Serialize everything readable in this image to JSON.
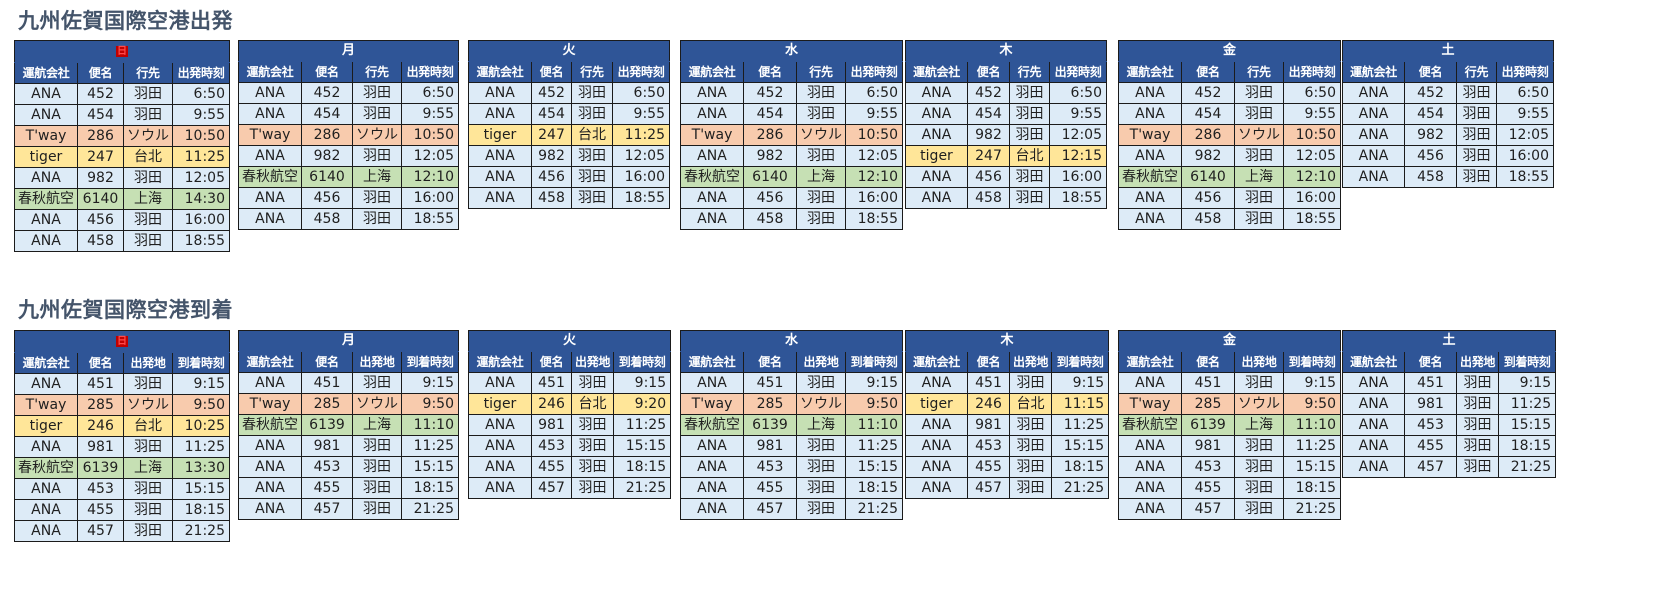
{
  "colors": {
    "header_bg": "#2f5597",
    "row_default": "#ddebf7",
    "row_tway": "#f8cbad",
    "row_tiger": "#ffe699",
    "row_spring": "#c6e0b4",
    "title_text": "#44546a",
    "sunday_label": "#ff0000"
  },
  "departures": {
    "title": "九州佐賀国際空港出発",
    "columns": [
      "運航会社",
      "便名",
      "行先",
      "出発時刻"
    ],
    "days": [
      {
        "day": "日",
        "rows": [
          {
            "airline": "ANA",
            "flight": "452",
            "place": "羽田",
            "time": "6:50",
            "type": "ana"
          },
          {
            "airline": "ANA",
            "flight": "454",
            "place": "羽田",
            "time": "9:55",
            "type": "ana"
          },
          {
            "airline": "T'way",
            "flight": "286",
            "place": "ソウル",
            "time": "10:50",
            "type": "tway"
          },
          {
            "airline": "tiger",
            "flight": "247",
            "place": "台北",
            "time": "11:25",
            "type": "tiger"
          },
          {
            "airline": "ANA",
            "flight": "982",
            "place": "羽田",
            "time": "12:05",
            "type": "ana"
          },
          {
            "airline": "春秋航空",
            "flight": "6140",
            "place": "上海",
            "time": "14:30",
            "type": "spring"
          },
          {
            "airline": "ANA",
            "flight": "456",
            "place": "羽田",
            "time": "16:00",
            "type": "ana"
          },
          {
            "airline": "ANA",
            "flight": "458",
            "place": "羽田",
            "time": "18:55",
            "type": "ana"
          }
        ]
      },
      {
        "day": "月",
        "rows": [
          {
            "airline": "ANA",
            "flight": "452",
            "place": "羽田",
            "time": "6:50",
            "type": "ana"
          },
          {
            "airline": "ANA",
            "flight": "454",
            "place": "羽田",
            "time": "9:55",
            "type": "ana"
          },
          {
            "airline": "T'way",
            "flight": "286",
            "place": "ソウル",
            "time": "10:50",
            "type": "tway"
          },
          {
            "airline": "ANA",
            "flight": "982",
            "place": "羽田",
            "time": "12:05",
            "type": "ana"
          },
          {
            "airline": "春秋航空",
            "flight": "6140",
            "place": "上海",
            "time": "12:10",
            "type": "spring"
          },
          {
            "airline": "ANA",
            "flight": "456",
            "place": "羽田",
            "time": "16:00",
            "type": "ana"
          },
          {
            "airline": "ANA",
            "flight": "458",
            "place": "羽田",
            "time": "18:55",
            "type": "ana"
          }
        ]
      },
      {
        "day": "火",
        "rows": [
          {
            "airline": "ANA",
            "flight": "452",
            "place": "羽田",
            "time": "6:50",
            "type": "ana"
          },
          {
            "airline": "ANA",
            "flight": "454",
            "place": "羽田",
            "time": "9:55",
            "type": "ana"
          },
          {
            "airline": "tiger",
            "flight": "247",
            "place": "台北",
            "time": "11:25",
            "type": "tiger"
          },
          {
            "airline": "ANA",
            "flight": "982",
            "place": "羽田",
            "time": "12:05",
            "type": "ana"
          },
          {
            "airline": "ANA",
            "flight": "456",
            "place": "羽田",
            "time": "16:00",
            "type": "ana"
          },
          {
            "airline": "ANA",
            "flight": "458",
            "place": "羽田",
            "time": "18:55",
            "type": "ana"
          }
        ]
      },
      {
        "day": "水",
        "rows": [
          {
            "airline": "ANA",
            "flight": "452",
            "place": "羽田",
            "time": "6:50",
            "type": "ana"
          },
          {
            "airline": "ANA",
            "flight": "454",
            "place": "羽田",
            "time": "9:55",
            "type": "ana"
          },
          {
            "airline": "T'way",
            "flight": "286",
            "place": "ソウル",
            "time": "10:50",
            "type": "tway"
          },
          {
            "airline": "ANA",
            "flight": "982",
            "place": "羽田",
            "time": "12:05",
            "type": "ana"
          },
          {
            "airline": "春秋航空",
            "flight": "6140",
            "place": "上海",
            "time": "12:10",
            "type": "spring"
          },
          {
            "airline": "ANA",
            "flight": "456",
            "place": "羽田",
            "time": "16:00",
            "type": "ana"
          },
          {
            "airline": "ANA",
            "flight": "458",
            "place": "羽田",
            "time": "18:55",
            "type": "ana"
          }
        ]
      },
      {
        "day": "木",
        "rows": [
          {
            "airline": "ANA",
            "flight": "452",
            "place": "羽田",
            "time": "6:50",
            "type": "ana"
          },
          {
            "airline": "ANA",
            "flight": "454",
            "place": "羽田",
            "time": "9:55",
            "type": "ana"
          },
          {
            "airline": "ANA",
            "flight": "982",
            "place": "羽田",
            "time": "12:05",
            "type": "ana"
          },
          {
            "airline": "tiger",
            "flight": "247",
            "place": "台北",
            "time": "12:15",
            "type": "tiger"
          },
          {
            "airline": "ANA",
            "flight": "456",
            "place": "羽田",
            "time": "16:00",
            "type": "ana"
          },
          {
            "airline": "ANA",
            "flight": "458",
            "place": "羽田",
            "time": "18:55",
            "type": "ana"
          }
        ]
      },
      {
        "day": "金",
        "rows": [
          {
            "airline": "ANA",
            "flight": "452",
            "place": "羽田",
            "time": "6:50",
            "type": "ana"
          },
          {
            "airline": "ANA",
            "flight": "454",
            "place": "羽田",
            "time": "9:55",
            "type": "ana"
          },
          {
            "airline": "T'way",
            "flight": "286",
            "place": "ソウル",
            "time": "10:50",
            "type": "tway"
          },
          {
            "airline": "ANA",
            "flight": "982",
            "place": "羽田",
            "time": "12:05",
            "type": "ana"
          },
          {
            "airline": "春秋航空",
            "flight": "6140",
            "place": "上海",
            "time": "12:10",
            "type": "spring"
          },
          {
            "airline": "ANA",
            "flight": "456",
            "place": "羽田",
            "time": "16:00",
            "type": "ana"
          },
          {
            "airline": "ANA",
            "flight": "458",
            "place": "羽田",
            "time": "18:55",
            "type": "ana"
          }
        ]
      },
      {
        "day": "土",
        "rows": [
          {
            "airline": "ANA",
            "flight": "452",
            "place": "羽田",
            "time": "6:50",
            "type": "ana"
          },
          {
            "airline": "ANA",
            "flight": "454",
            "place": "羽田",
            "time": "9:55",
            "type": "ana"
          },
          {
            "airline": "ANA",
            "flight": "982",
            "place": "羽田",
            "time": "12:05",
            "type": "ana"
          },
          {
            "airline": "ANA",
            "flight": "456",
            "place": "羽田",
            "time": "16:00",
            "type": "ana"
          },
          {
            "airline": "ANA",
            "flight": "458",
            "place": "羽田",
            "time": "18:55",
            "type": "ana"
          }
        ]
      }
    ]
  },
  "arrivals": {
    "title": "九州佐賀国際空港到着",
    "columns": [
      "運航会社",
      "便名",
      "出発地",
      "到着時刻"
    ],
    "days": [
      {
        "day": "日",
        "rows": [
          {
            "airline": "ANA",
            "flight": "451",
            "place": "羽田",
            "time": "9:15",
            "type": "ana"
          },
          {
            "airline": "T'way",
            "flight": "285",
            "place": "ソウル",
            "time": "9:50",
            "type": "tway"
          },
          {
            "airline": "tiger",
            "flight": "246",
            "place": "台北",
            "time": "10:25",
            "type": "tiger"
          },
          {
            "airline": "ANA",
            "flight": "981",
            "place": "羽田",
            "time": "11:25",
            "type": "ana"
          },
          {
            "airline": "春秋航空",
            "flight": "6139",
            "place": "上海",
            "time": "13:30",
            "type": "spring"
          },
          {
            "airline": "ANA",
            "flight": "453",
            "place": "羽田",
            "time": "15:15",
            "type": "ana"
          },
          {
            "airline": "ANA",
            "flight": "455",
            "place": "羽田",
            "time": "18:15",
            "type": "ana"
          },
          {
            "airline": "ANA",
            "flight": "457",
            "place": "羽田",
            "time": "21:25",
            "type": "ana"
          }
        ]
      },
      {
        "day": "月",
        "rows": [
          {
            "airline": "ANA",
            "flight": "451",
            "place": "羽田",
            "time": "9:15",
            "type": "ana"
          },
          {
            "airline": "T'way",
            "flight": "285",
            "place": "ソウル",
            "time": "9:50",
            "type": "tway"
          },
          {
            "airline": "春秋航空",
            "flight": "6139",
            "place": "上海",
            "time": "11:10",
            "type": "spring"
          },
          {
            "airline": "ANA",
            "flight": "981",
            "place": "羽田",
            "time": "11:25",
            "type": "ana"
          },
          {
            "airline": "ANA",
            "flight": "453",
            "place": "羽田",
            "time": "15:15",
            "type": "ana"
          },
          {
            "airline": "ANA",
            "flight": "455",
            "place": "羽田",
            "time": "18:15",
            "type": "ana"
          },
          {
            "airline": "ANA",
            "flight": "457",
            "place": "羽田",
            "time": "21:25",
            "type": "ana"
          }
        ]
      },
      {
        "day": "火",
        "rows": [
          {
            "airline": "ANA",
            "flight": "451",
            "place": "羽田",
            "time": "9:15",
            "type": "ana"
          },
          {
            "airline": "tiger",
            "flight": "246",
            "place": "台北",
            "time": "9:20",
            "type": "tiger"
          },
          {
            "airline": "ANA",
            "flight": "981",
            "place": "羽田",
            "time": "11:25",
            "type": "ana"
          },
          {
            "airline": "ANA",
            "flight": "453",
            "place": "羽田",
            "time": "15:15",
            "type": "ana"
          },
          {
            "airline": "ANA",
            "flight": "455",
            "place": "羽田",
            "time": "18:15",
            "type": "ana"
          },
          {
            "airline": "ANA",
            "flight": "457",
            "place": "羽田",
            "time": "21:25",
            "type": "ana"
          }
        ]
      },
      {
        "day": "水",
        "rows": [
          {
            "airline": "ANA",
            "flight": "451",
            "place": "羽田",
            "time": "9:15",
            "type": "ana"
          },
          {
            "airline": "T'way",
            "flight": "285",
            "place": "ソウル",
            "time": "9:50",
            "type": "tway"
          },
          {
            "airline": "春秋航空",
            "flight": "6139",
            "place": "上海",
            "time": "11:10",
            "type": "spring"
          },
          {
            "airline": "ANA",
            "flight": "981",
            "place": "羽田",
            "time": "11:25",
            "type": "ana"
          },
          {
            "airline": "ANA",
            "flight": "453",
            "place": "羽田",
            "time": "15:15",
            "type": "ana"
          },
          {
            "airline": "ANA",
            "flight": "455",
            "place": "羽田",
            "time": "18:15",
            "type": "ana"
          },
          {
            "airline": "ANA",
            "flight": "457",
            "place": "羽田",
            "time": "21:25",
            "type": "ana"
          }
        ]
      },
      {
        "day": "木",
        "rows": [
          {
            "airline": "ANA",
            "flight": "451",
            "place": "羽田",
            "time": "9:15",
            "type": "ana"
          },
          {
            "airline": "tiger",
            "flight": "246",
            "place": "台北",
            "time": "11:15",
            "type": "tiger"
          },
          {
            "airline": "ANA",
            "flight": "981",
            "place": "羽田",
            "time": "11:25",
            "type": "ana"
          },
          {
            "airline": "ANA",
            "flight": "453",
            "place": "羽田",
            "time": "15:15",
            "type": "ana"
          },
          {
            "airline": "ANA",
            "flight": "455",
            "place": "羽田",
            "time": "18:15",
            "type": "ana"
          },
          {
            "airline": "ANA",
            "flight": "457",
            "place": "羽田",
            "time": "21:25",
            "type": "ana"
          }
        ]
      },
      {
        "day": "金",
        "rows": [
          {
            "airline": "ANA",
            "flight": "451",
            "place": "羽田",
            "time": "9:15",
            "type": "ana"
          },
          {
            "airline": "T'way",
            "flight": "285",
            "place": "ソウル",
            "time": "9:50",
            "type": "tway"
          },
          {
            "airline": "春秋航空",
            "flight": "6139",
            "place": "上海",
            "time": "11:10",
            "type": "spring"
          },
          {
            "airline": "ANA",
            "flight": "981",
            "place": "羽田",
            "time": "11:25",
            "type": "ana"
          },
          {
            "airline": "ANA",
            "flight": "453",
            "place": "羽田",
            "time": "15:15",
            "type": "ana"
          },
          {
            "airline": "ANA",
            "flight": "455",
            "place": "羽田",
            "time": "18:15",
            "type": "ana"
          },
          {
            "airline": "ANA",
            "flight": "457",
            "place": "羽田",
            "time": "21:25",
            "type": "ana"
          }
        ]
      },
      {
        "day": "土",
        "rows": [
          {
            "airline": "ANA",
            "flight": "451",
            "place": "羽田",
            "time": "9:15",
            "type": "ana"
          },
          {
            "airline": "ANA",
            "flight": "981",
            "place": "羽田",
            "time": "11:25",
            "type": "ana"
          },
          {
            "airline": "ANA",
            "flight": "453",
            "place": "羽田",
            "time": "15:15",
            "type": "ana"
          },
          {
            "airline": "ANA",
            "flight": "455",
            "place": "羽田",
            "time": "18:15",
            "type": "ana"
          },
          {
            "airline": "ANA",
            "flight": "457",
            "place": "羽田",
            "time": "21:25",
            "type": "ana"
          }
        ]
      }
    ]
  }
}
